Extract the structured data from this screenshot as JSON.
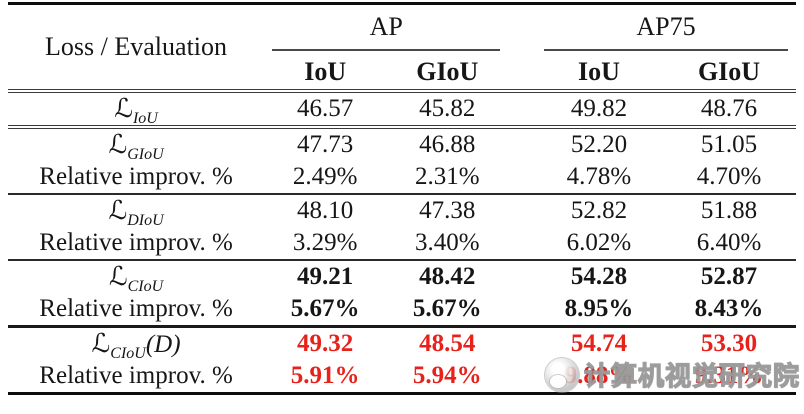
{
  "colors": {
    "text": "#161616",
    "highlight_red": "#e8211b",
    "rule_dark": "#0d0d0d",
    "rule_gray": "#3a3a3a",
    "watermark_gray": "#b4b4b4"
  },
  "table": {
    "corner_label": "Loss / Evaluation",
    "col_groups": [
      {
        "label": "AP",
        "columns": [
          "IoU",
          "GIoU"
        ]
      },
      {
        "label": "AP75",
        "columns": [
          "IoU",
          "GIoU"
        ]
      }
    ],
    "rows": [
      {
        "label_script": "ℒ",
        "label_sub": "IoU",
        "label_suffix": "",
        "values": [
          "46.57",
          "45.82",
          "49.82",
          "48.76"
        ]
      },
      {
        "label_script": "ℒ",
        "label_sub": "GIoU",
        "label_suffix": "",
        "values": [
          "47.73",
          "46.88",
          "52.20",
          "51.05"
        ]
      },
      {
        "label": "Relative improv. %",
        "values": [
          "2.49%",
          "2.31%",
          "4.78%",
          "4.70%"
        ]
      },
      {
        "label_script": "ℒ",
        "label_sub": "DIoU",
        "label_suffix": "",
        "values": [
          "48.10",
          "47.38",
          "52.82",
          "51.88"
        ]
      },
      {
        "label": "Relative improv. %",
        "values": [
          "3.29%",
          "3.40%",
          "6.02%",
          "6.40%"
        ]
      },
      {
        "label_script": "ℒ",
        "label_sub": "CIoU",
        "label_suffix": "",
        "values": [
          "49.21",
          "48.42",
          "54.28",
          "52.87"
        ]
      },
      {
        "label": "Relative improv. %",
        "values": [
          "5.67%",
          "5.67%",
          "8.95%",
          "8.43%"
        ]
      },
      {
        "label_script": "ℒ",
        "label_sub": "CIoU",
        "label_suffix": "(D)",
        "values": [
          "49.32",
          "48.54",
          "54.74",
          "53.30"
        ]
      },
      {
        "label": "Relative improv. %",
        "values": [
          "5.91%",
          "5.94%",
          "9.88%",
          "9.31%"
        ]
      }
    ]
  },
  "watermark": {
    "text": "计算机视觉研究院",
    "logo": "camera-lens-icon"
  }
}
